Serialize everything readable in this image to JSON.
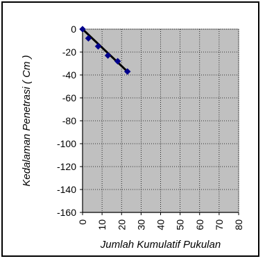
{
  "chart_data": {
    "type": "scatter",
    "xlabel": "Jumlah Kumulatif Pukulan",
    "ylabel": "Kedalaman Penetrasi ( Cm )",
    "xlim": [
      0,
      80
    ],
    "ylim": [
      -160,
      0
    ],
    "x_ticks": [
      "0",
      "10",
      "20",
      "30",
      "40",
      "50",
      "60",
      "70",
      "80"
    ],
    "y_ticks": [
      "0",
      "-20",
      "-40",
      "-60",
      "-80",
      "-100",
      "-120",
      "-140",
      "-160"
    ],
    "grid": true,
    "plot_background": "#c0c0c0",
    "series": [
      {
        "x": [
          0,
          3,
          8,
          13,
          18,
          23
        ],
        "y": [
          0,
          -8,
          -15,
          -23,
          -28,
          -37
        ],
        "marker_color": "#00008b",
        "line_color": "#000000"
      }
    ]
  }
}
